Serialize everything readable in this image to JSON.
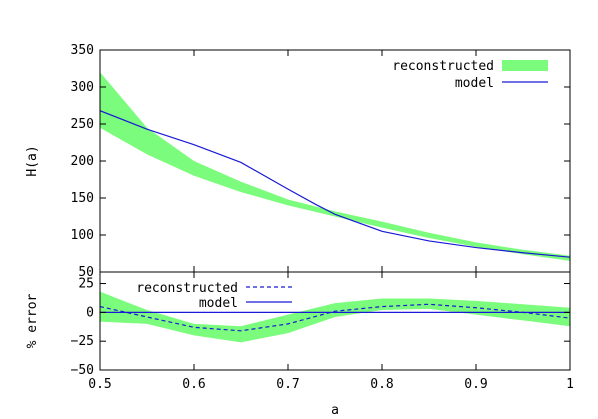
{
  "chart_data": [
    {
      "type": "line",
      "panel": "top",
      "xlabel": "",
      "ylabel": "H(a)",
      "xlim": [
        0.5,
        1.0
      ],
      "ylim": [
        50,
        350
      ],
      "yticks": [
        50,
        100,
        150,
        200,
        250,
        300,
        350
      ],
      "ytick_labels": [
        "50",
        "100",
        "150",
        "200",
        "250",
        "300",
        "350"
      ],
      "grid": false,
      "legend": "top-right",
      "colors": {
        "band": "#7cfc7c",
        "model": "#1a1ad6"
      },
      "series": [
        {
          "name": "reconstructed",
          "kind": "band",
          "x": [
            0.5,
            0.55,
            0.6,
            0.65,
            0.7,
            0.75,
            0.8,
            0.85,
            0.9,
            0.95,
            1.0
          ],
          "lower": [
            245,
            209,
            180,
            158,
            140,
            125,
            110,
            96,
            84,
            74,
            65
          ],
          "upper": [
            320,
            245,
            200,
            172,
            148,
            132,
            118,
            103,
            90,
            80,
            72
          ]
        },
        {
          "name": "model",
          "kind": "line",
          "x": [
            0.5,
            0.55,
            0.6,
            0.65,
            0.7,
            0.73,
            0.75,
            0.8,
            0.85,
            0.9,
            0.95,
            1.0
          ],
          "y": [
            268,
            243,
            222,
            198,
            162,
            141,
            128,
            105,
            92,
            83,
            76,
            70
          ]
        }
      ]
    },
    {
      "type": "line",
      "panel": "bottom",
      "xlabel": "a",
      "ylabel": "% error",
      "xlim": [
        0.5,
        1.0
      ],
      "ylim": [
        -50,
        35
      ],
      "xticks": [
        0.5,
        0.6,
        0.7,
        0.8,
        0.9,
        1.0
      ],
      "xtick_labels": [
        "0.5",
        "0.6",
        "0.7",
        "0.8",
        "0.9",
        "1"
      ],
      "yticks": [
        -50,
        -25,
        0,
        25
      ],
      "ytick_labels": [
        "−50",
        "−25",
        "0",
        "25"
      ],
      "grid": false,
      "legend": "top-left",
      "colors": {
        "band": "#7cfc7c",
        "reconstructed": "#1a1ad6",
        "model": "#1a1ad6"
      },
      "series": [
        {
          "name": "",
          "kind": "band",
          "x": [
            0.5,
            0.55,
            0.6,
            0.65,
            0.7,
            0.75,
            0.8,
            0.85,
            0.9,
            0.95,
            1.0
          ],
          "lower": [
            -8,
            -10,
            -20,
            -26,
            -18,
            -4,
            2,
            3,
            -2,
            -7,
            -12
          ],
          "upper": [
            18,
            2,
            -10,
            -12,
            -2,
            8,
            12,
            12,
            10,
            7,
            4
          ]
        },
        {
          "name": "reconstructed",
          "kind": "dashed",
          "x": [
            0.5,
            0.55,
            0.6,
            0.65,
            0.7,
            0.75,
            0.8,
            0.85,
            0.9,
            0.95,
            1.0
          ],
          "y": [
            5,
            -4,
            -13,
            -16,
            -10,
            1,
            5,
            7,
            4,
            0,
            -5
          ]
        },
        {
          "name": "model",
          "kind": "line",
          "x": [
            0.5,
            1.0
          ],
          "y": [
            0,
            0
          ]
        }
      ]
    }
  ]
}
